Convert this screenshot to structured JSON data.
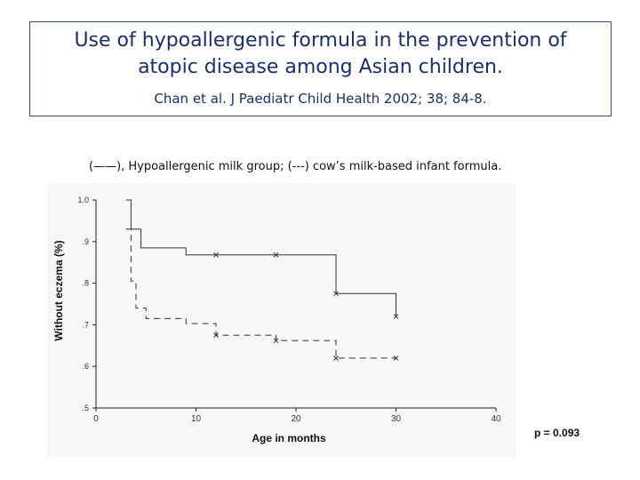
{
  "slide": {
    "title_line1": "Use of hypoallergenic formula in the prevention of",
    "title_line2": "atopic disease among Asian children.",
    "citation": "Chan et al. J Paediatr Child Health 2002; 38; 84-8.",
    "legend_caption": "(——), Hypoallergenic milk group;   (---) cow’s milk-based infant formula.",
    "p_value": "p  = 0.093"
  },
  "chart_data": {
    "type": "line",
    "title": "",
    "xlabel": "Age in months",
    "ylabel": "Without eczema (%)",
    "xlim": [
      0,
      40
    ],
    "ylim": [
      0.5,
      1.0
    ],
    "x_ticks": [
      0,
      10,
      20,
      30,
      40
    ],
    "x_tick_labels": [
      "0",
      "10",
      "20",
      "30",
      "40"
    ],
    "y_ticks": [
      0.5,
      0.6,
      0.7,
      0.8,
      0.9,
      1.0
    ],
    "y_tick_labels": [
      ".5",
      ".6",
      ".7",
      ".8",
      ".9",
      "1.0"
    ],
    "grid": false,
    "step": true,
    "series": [
      {
        "style": "solid",
        "x": [
          3,
          3.5,
          4.5,
          9,
          24,
          30
        ],
        "y": [
          1.0,
          0.93,
          0.885,
          0.868,
          0.775,
          0.72
        ],
        "x_end": 30,
        "censor_marks": [
          {
            "x": 12,
            "y": 0.868
          },
          {
            "x": 18,
            "y": 0.868
          },
          {
            "x": 24,
            "y": 0.775
          },
          {
            "x": 30,
            "y": 0.72
          }
        ]
      },
      {
        "style": "dashed",
        "x": [
          3,
          3.5,
          4,
          5,
          9,
          12,
          18,
          24,
          30
        ],
        "y": [
          0.93,
          0.805,
          0.74,
          0.715,
          0.703,
          0.675,
          0.662,
          0.62,
          0.62
        ],
        "x_end": 30,
        "censor_marks": [
          {
            "x": 12,
            "y": 0.675
          },
          {
            "x": 18,
            "y": 0.662
          },
          {
            "x": 24,
            "y": 0.62
          },
          {
            "x": 30,
            "y": 0.62
          }
        ]
      }
    ]
  }
}
